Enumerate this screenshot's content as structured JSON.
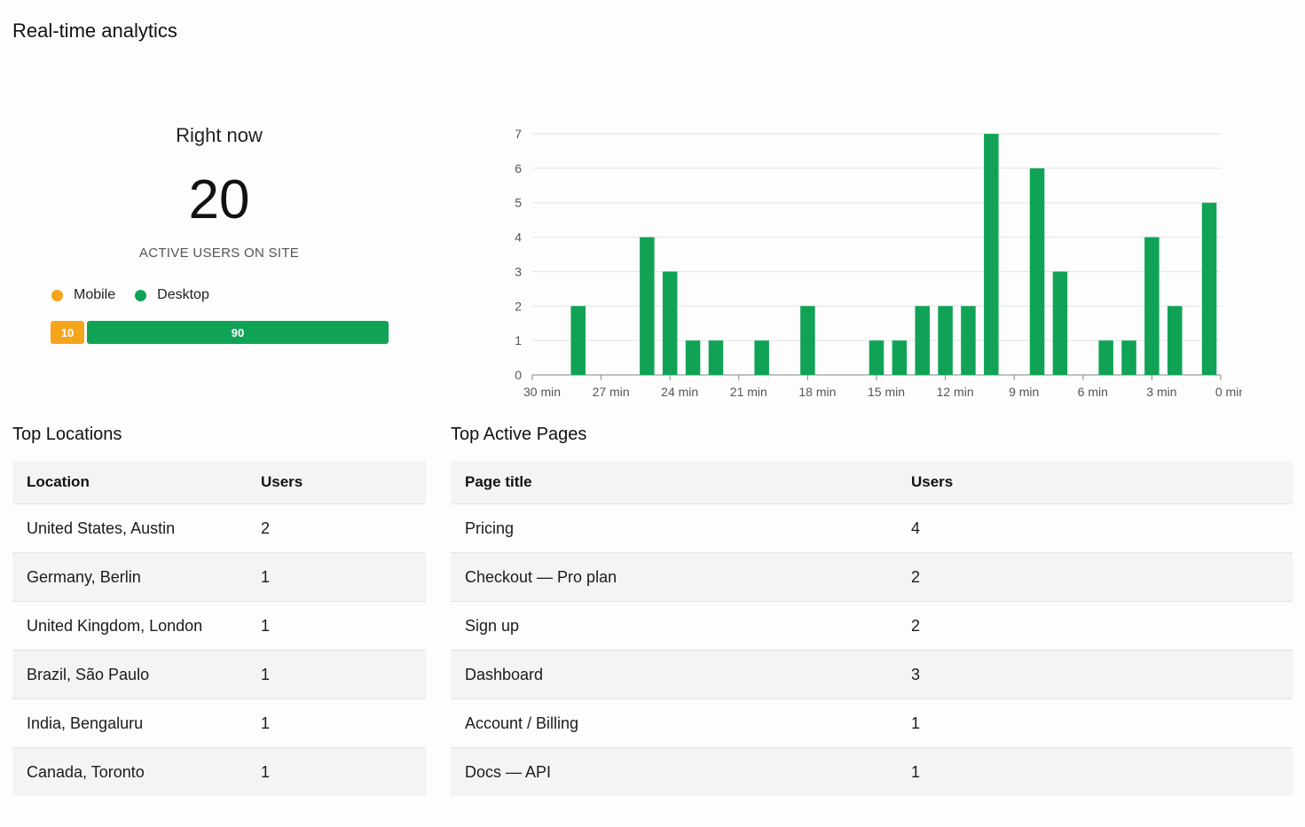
{
  "page": {
    "title": "Real-time analytics"
  },
  "summary": {
    "right_now_label": "Right now",
    "active_count": "20",
    "active_label": "ACTIVE USERS ON SITE",
    "legend": {
      "mobile": "Mobile",
      "desktop": "Desktop"
    },
    "split": {
      "mobile_pct": 10,
      "desktop_pct": 90,
      "mobile_label": "10",
      "desktop_label": "90"
    },
    "colors": {
      "mobile": "#f5a51b",
      "desktop": "#10a356"
    }
  },
  "chart_data": {
    "type": "bar",
    "x_tick_labels": [
      "30 min",
      "27 min",
      "24 min",
      "21 min",
      "18 min",
      "15 min",
      "12 min",
      "9 min",
      "6 min",
      "3 min",
      "0 min"
    ],
    "x_range": [
      30,
      0
    ],
    "ylim": [
      0,
      7
    ],
    "yticks": [
      0,
      1,
      2,
      3,
      4,
      5,
      6,
      7
    ],
    "grid": true,
    "color": "#10a356",
    "series": [
      {
        "x": [
          28,
          25,
          24,
          23,
          22,
          20,
          18,
          15,
          14,
          13,
          12,
          11,
          10,
          8,
          7,
          5,
          4,
          3,
          2
        ],
        "values": [
          2,
          4,
          3,
          1,
          1,
          1,
          2,
          1,
          1,
          2,
          2,
          2,
          7,
          6,
          3,
          1,
          1,
          4,
          2
        ]
      }
    ],
    "bar_at_0_5": 5
  },
  "locations": {
    "title": "Top Locations",
    "headers": [
      "Location",
      "Users"
    ],
    "rows": [
      [
        "United States, Austin",
        "2"
      ],
      [
        "Germany, Berlin",
        "1"
      ],
      [
        "United Kingdom, London",
        "1"
      ],
      [
        "Brazil, São Paulo",
        "1"
      ],
      [
        "India, Bengaluru",
        "1"
      ],
      [
        "Canada, Toronto",
        "1"
      ]
    ]
  },
  "pages": {
    "title": "Top Active Pages",
    "headers": [
      "Page title",
      "Users"
    ],
    "rows": [
      [
        "Pricing",
        "4"
      ],
      [
        "Checkout — Pro plan",
        "2"
      ],
      [
        "Sign up",
        "2"
      ],
      [
        "Dashboard",
        "3"
      ],
      [
        "Account / Billing",
        "1"
      ],
      [
        "Docs — API",
        "1"
      ]
    ]
  }
}
